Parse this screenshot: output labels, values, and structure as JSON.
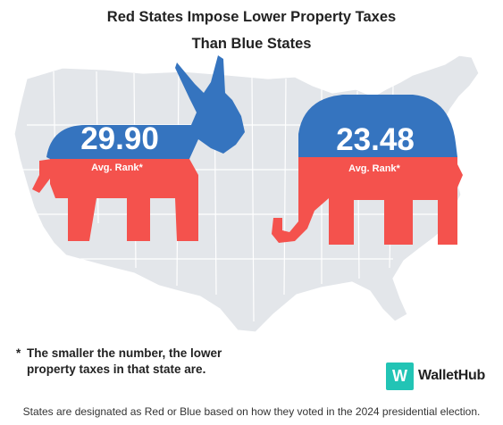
{
  "title_line1": "Red States Impose Lower Property Taxes",
  "title_line2": "Than Blue States",
  "donkey": {
    "value": "29.90",
    "label": "Avg. Rank*",
    "top_color": "#3574bf",
    "bottom_color": "#f4524d"
  },
  "elephant": {
    "value": "23.48",
    "label": "Avg. Rank*",
    "top_color": "#3574bf",
    "bottom_color": "#f4524d"
  },
  "note_star": "*",
  "note_text": "The smaller the number, the lower property taxes in that state are.",
  "logo": {
    "mark": "W",
    "word": "WalletHub",
    "mark_color": "#22c4b5",
    "icon": "wallethub-logo-icon"
  },
  "footer": "States are designated as Red or Blue based on how they voted in the 2024 presidential election.",
  "map_color": "#e3e6ea"
}
